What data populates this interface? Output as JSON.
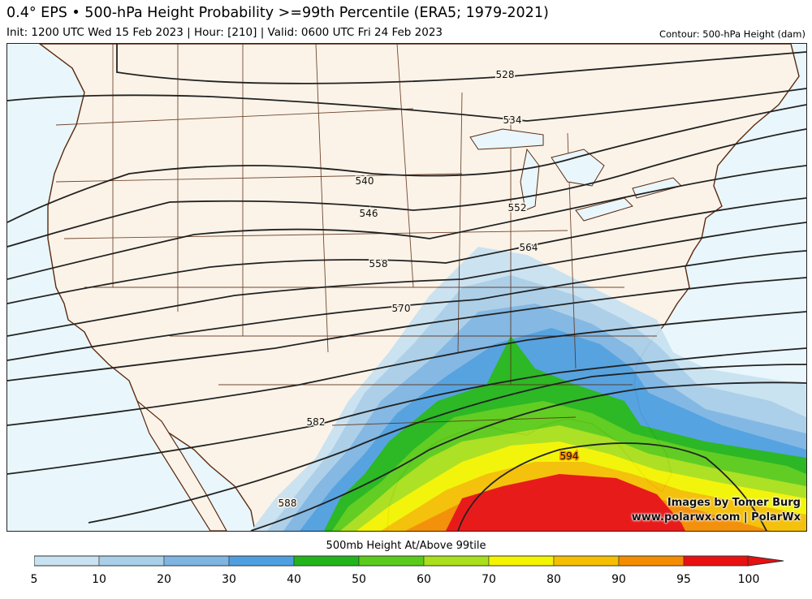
{
  "header": {
    "title": "0.4° EPS • 500-hPa Height Probability >=99th Percentile (ERA5; 1979-2021)",
    "subtitle": "Init: 1200 UTC Wed 15 Feb 2023 | Hour: [210] | Valid: 0600 UTC Fri 24 Feb 2023",
    "contour_note": "Contour: 500-hPa Height (dam)"
  },
  "map": {
    "region": "Continental United States",
    "colors": {
      "ocean": "#e9f6fb",
      "land": "#fbf3e8",
      "borders": "#5a2a10",
      "contours": "#222222"
    },
    "contour_labels": [
      "528",
      "534",
      "540",
      "546",
      "552",
      "558",
      "564",
      "570",
      "582",
      "588",
      "594"
    ]
  },
  "credits": {
    "line1": "Images by Tomer Burg",
    "line2": "www.polarwx.com | PolarWx"
  },
  "colorbar": {
    "title": "500mb Height At/Above 99tile",
    "ticks": [
      "5",
      "10",
      "20",
      "30",
      "40",
      "50",
      "60",
      "70",
      "80",
      "90",
      "95",
      "100"
    ],
    "colors": [
      "#c9e2f1",
      "#a9cfe9",
      "#7fb5e3",
      "#4f9fe0",
      "#22b51b",
      "#5acb19",
      "#a9e01b",
      "#f4f400",
      "#f5bf00",
      "#f58c00",
      "#e81010"
    ]
  }
}
